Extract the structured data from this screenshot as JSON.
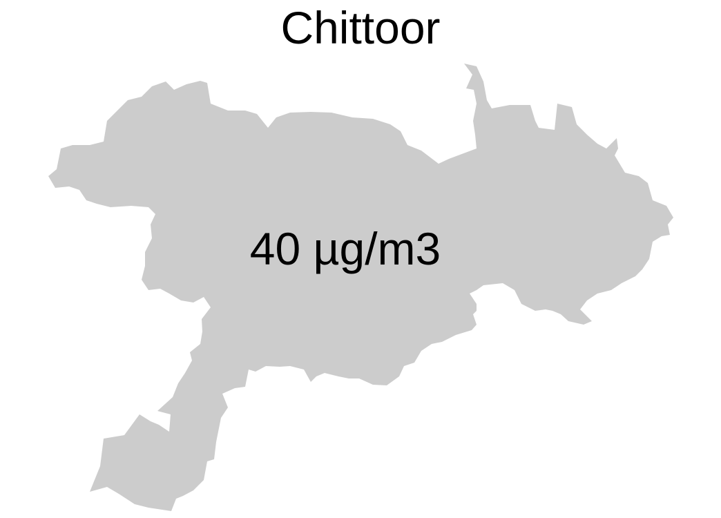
{
  "map": {
    "title": "Chittoor",
    "value_label": "40 µg/m3",
    "region_fill": "#cccccc",
    "background": "#ffffff",
    "text_color": "#000000"
  }
}
